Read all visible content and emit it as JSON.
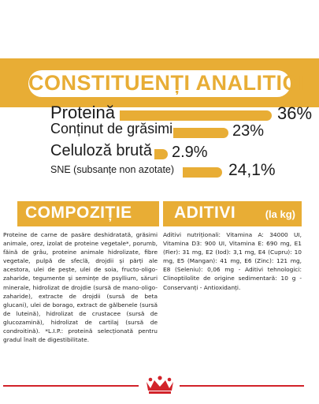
{
  "header": {
    "title": "CONSTITUENȚI ANALITICI"
  },
  "analytical": [
    {
      "label": "Proteină",
      "value": "36%"
    },
    {
      "label": "Conținut de grăsimi",
      "value": "23%"
    },
    {
      "label": "Celuloză brută",
      "value": "2.9%"
    },
    {
      "label": "SNE (subsanțe non azotate)",
      "value": "24,1%"
    }
  ],
  "composition": {
    "title": "COMPOZIȚIE",
    "text": "Proteine de carne de pasăre deshidratată, grăsimi animale, orez, izolat de proteine vegetale*, porumb, făină de grâu, proteine animale hidrolizate, fibre vegetale, pulpă de sfeclă, drojdii și părți ale acestora, ulei de pește, ulei de soia, fructo-oligo-zaharide, tegumente și semințe de psyllium, săruri minerale, hidrolizat de drojdie (sursă de mano-oligo-zaharide), extracte de drojdii (sursă de beta glucani), ulei de borago, extract de gălbenele (sursă de luteină), hidrolizat de crustacee (sursă de glucozamină), hidrolizat de cartilaj (sursă de condroitină). *L.I.P.: proteină selecționată pentru gradul înalt de digestibilitate."
  },
  "additives": {
    "title": "ADITIVI",
    "unit": "(la kg)",
    "text": "Aditivi nutriționali: Vitamina A: 34000 UI, Vitamina D3: 900 UI, Vitamina E: 690 mg, E1 (Fier): 31 mg, E2 (Iod): 3,1 mg, E4 (Cupru): 10 mg, E5 (Mangan): 41 mg, E6 (Zinc): 121 mg, E8 (Seleniu): 0,06 mg - Aditivi tehnologici: Clinoptilolite de origine sedimentară: 10 g - Conservanți - Antioxidanți."
  },
  "colors": {
    "accent": "#e8ad35",
    "logo_red": "#d2232a"
  },
  "logo": {
    "icon": "royal-canin-crown-logo"
  }
}
